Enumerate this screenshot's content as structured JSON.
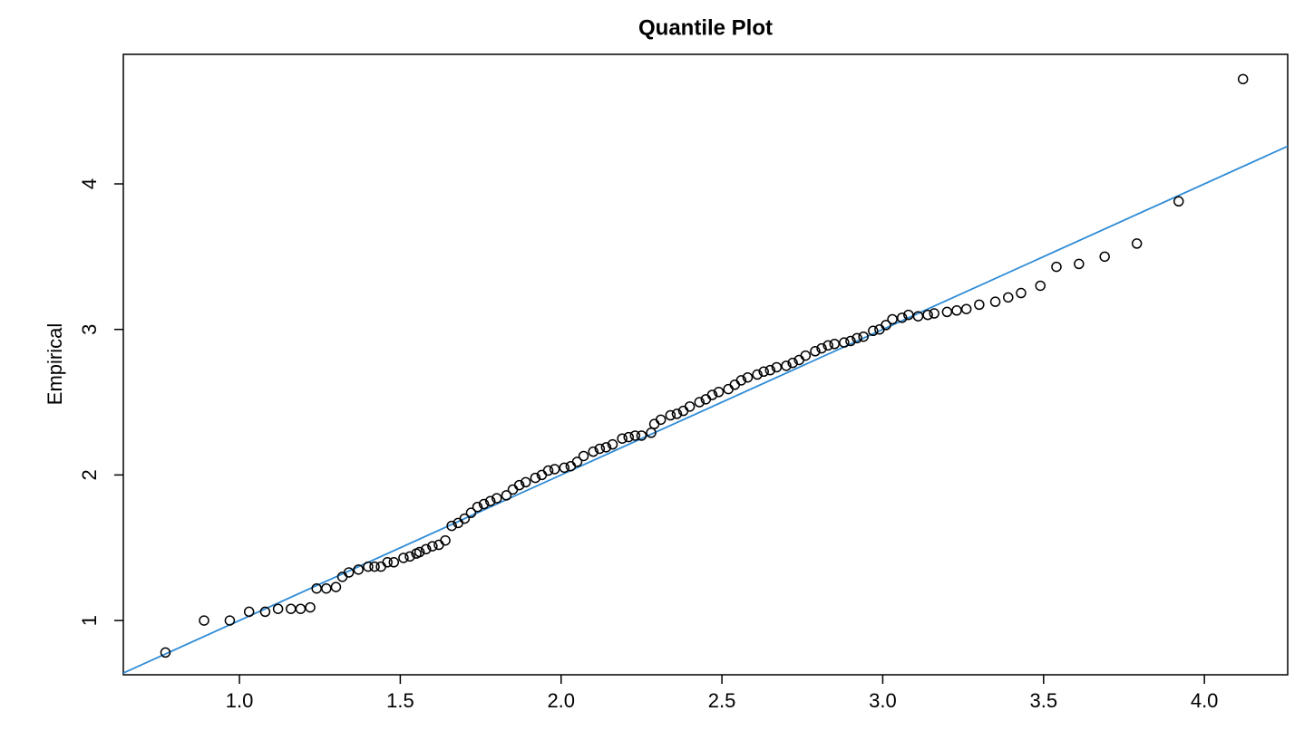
{
  "chart_data": {
    "type": "scatter",
    "title": "Quantile Plot",
    "y_label": "Empirical",
    "x": [
      0.77,
      0.89,
      0.97,
      1.03,
      1.08,
      1.12,
      1.16,
      1.19,
      1.22,
      1.24,
      1.27,
      1.3,
      1.32,
      1.34,
      1.37,
      1.4,
      1.42,
      1.44,
      1.46,
      1.48,
      1.51,
      1.53,
      1.55,
      1.56,
      1.58,
      1.6,
      1.62,
      1.64,
      1.66,
      1.68,
      1.7,
      1.72,
      1.74,
      1.76,
      1.78,
      1.8,
      1.83,
      1.85,
      1.87,
      1.89,
      1.92,
      1.94,
      1.96,
      1.98,
      2.01,
      2.03,
      2.05,
      2.07,
      2.1,
      2.12,
      2.14,
      2.16,
      2.19,
      2.21,
      2.23,
      2.25,
      2.28,
      2.29,
      2.31,
      2.34,
      2.36,
      2.38,
      2.4,
      2.43,
      2.45,
      2.47,
      2.49,
      2.52,
      2.54,
      2.56,
      2.58,
      2.61,
      2.63,
      2.65,
      2.67,
      2.7,
      2.72,
      2.74,
      2.76,
      2.79,
      2.81,
      2.83,
      2.85,
      2.88,
      2.9,
      2.92,
      2.94,
      2.97,
      2.99,
      3.01,
      3.03,
      3.06,
      3.08,
      3.11,
      3.14,
      3.16,
      3.2,
      3.23,
      3.26,
      3.3,
      3.35,
      3.39,
      3.43,
      3.49,
      3.54,
      3.61,
      3.69,
      3.79,
      3.92,
      4.12
    ],
    "values": [
      0.78,
      1.0,
      1.0,
      1.06,
      1.06,
      1.08,
      1.08,
      1.08,
      1.09,
      1.22,
      1.22,
      1.23,
      1.3,
      1.33,
      1.35,
      1.37,
      1.37,
      1.37,
      1.4,
      1.4,
      1.43,
      1.44,
      1.46,
      1.47,
      1.49,
      1.51,
      1.52,
      1.55,
      1.65,
      1.67,
      1.7,
      1.74,
      1.78,
      1.8,
      1.82,
      1.84,
      1.86,
      1.9,
      1.93,
      1.95,
      1.98,
      2.0,
      2.03,
      2.04,
      2.05,
      2.06,
      2.09,
      2.13,
      2.16,
      2.18,
      2.19,
      2.21,
      2.25,
      2.26,
      2.27,
      2.27,
      2.29,
      2.35,
      2.38,
      2.41,
      2.42,
      2.44,
      2.47,
      2.5,
      2.52,
      2.55,
      2.57,
      2.59,
      2.62,
      2.65,
      2.67,
      2.69,
      2.71,
      2.72,
      2.74,
      2.75,
      2.77,
      2.79,
      2.82,
      2.85,
      2.87,
      2.89,
      2.9,
      2.91,
      2.92,
      2.94,
      2.95,
      2.99,
      3.0,
      3.03,
      3.07,
      3.08,
      3.1,
      3.09,
      3.1,
      3.11,
      3.12,
      3.13,
      3.14,
      3.17,
      3.19,
      3.22,
      3.25,
      3.3,
      3.43,
      3.45,
      3.5,
      3.59,
      3.88,
      4.72
    ],
    "color": "#000000",
    "reference_line": {
      "intercept": 0,
      "slope": 1,
      "color": "#2e8bd6"
    },
    "xlim": [
      0.639,
      4.259
    ],
    "ylim": [
      0.627,
      4.89
    ],
    "xticks": [
      {
        "value": 1,
        "label": "1.0"
      },
      {
        "value": 1.5,
        "label": "1.5"
      },
      {
        "value": 2,
        "label": "2.0"
      },
      {
        "value": 2.5,
        "label": "2.5"
      },
      {
        "value": 3,
        "label": "3.0"
      },
      {
        "value": 3.5,
        "label": "3.5"
      },
      {
        "value": 4,
        "label": "4.0"
      }
    ],
    "yticks": [
      1,
      2,
      3,
      4
    ],
    "grid": false
  }
}
